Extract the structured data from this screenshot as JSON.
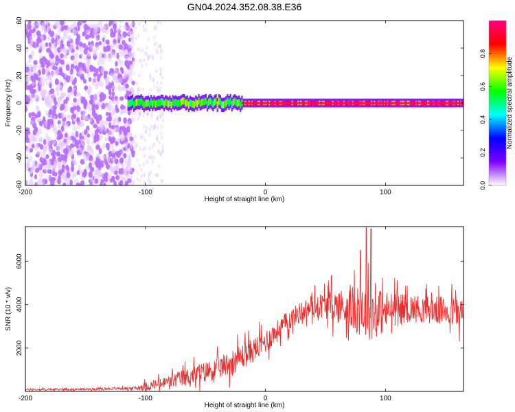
{
  "figure": {
    "title": "GN04.2024.352.08.38.E36"
  },
  "chart_data": [
    {
      "type": "heatmap",
      "xlabel": "Height of straight line (km)",
      "ylabel": "Frequency (Hz)",
      "xlim": [
        -200,
        165
      ],
      "ylim": [
        -60,
        60
      ],
      "xticks": [
        -200,
        -100,
        0,
        100
      ],
      "yticks": [
        -60,
        -40,
        -20,
        0,
        20,
        40,
        60
      ],
      "colorbar": {
        "label": "Normalized spectral amplitude",
        "range": [
          0,
          1
        ],
        "ticks": [
          0.0,
          0.2,
          0.4,
          0.6,
          0.8
        ],
        "colormap": [
          "#ffffff",
          "#7f00ff",
          "#0000ff",
          "#00ffff",
          "#00ff00",
          "#ffff00",
          "#ff0000",
          "#ff007f"
        ]
      },
      "regions": [
        {
          "desc": "broad noise",
          "x_range": [
            -200,
            -110
          ],
          "freq_range": [
            -60,
            60
          ],
          "amplitude": 0.05
        },
        {
          "desc": "sparse noise",
          "x_range": [
            -110,
            -85
          ],
          "freq_range": [
            -60,
            60
          ],
          "amplitude": 0.02
        },
        {
          "desc": "dominant band",
          "x_range": [
            -115,
            165
          ],
          "center_freq": 0,
          "halfwidth_hz": 2,
          "peak_amplitude": 1.0
        }
      ]
    },
    {
      "type": "line",
      "xlabel": "Height of straight line (km)",
      "ylabel": "SNR (10 * v/v)",
      "xlim": [
        -200,
        165
      ],
      "ylim": [
        0,
        7600
      ],
      "xticks": [
        -200,
        -100,
        0,
        100
      ],
      "yticks": [
        2000,
        4000,
        6000
      ],
      "color": "#e8302f",
      "envelope": {
        "x": [
          -200,
          -150,
          -110,
          -100,
          -90,
          -80,
          -70,
          -60,
          -50,
          -40,
          -30,
          -20,
          -10,
          0,
          10,
          20,
          30,
          40,
          50,
          60,
          70,
          80,
          90,
          100,
          110,
          120,
          130,
          140,
          150,
          160,
          165
        ],
        "mean": [
          80,
          100,
          150,
          220,
          320,
          450,
          600,
          750,
          900,
          1050,
          1300,
          1600,
          1900,
          2300,
          2800,
          3300,
          3700,
          3900,
          4000,
          3950,
          3850,
          3700,
          3600,
          3700,
          3800,
          3850,
          3800,
          3750,
          3700,
          3650,
          3600
        ],
        "spread": [
          60,
          60,
          80,
          250,
          300,
          400,
          500,
          550,
          600,
          650,
          700,
          750,
          700,
          700,
          650,
          600,
          600,
          650,
          800,
          1000,
          1200,
          1500,
          1600,
          1200,
          900,
          800,
          800,
          800,
          850,
          900,
          900
        ]
      },
      "peaks": [
        {
          "x": 84,
          "y": 7550
        },
        {
          "x": 88,
          "y": 7500
        },
        {
          "x": 79,
          "y": 6500
        }
      ]
    }
  ]
}
